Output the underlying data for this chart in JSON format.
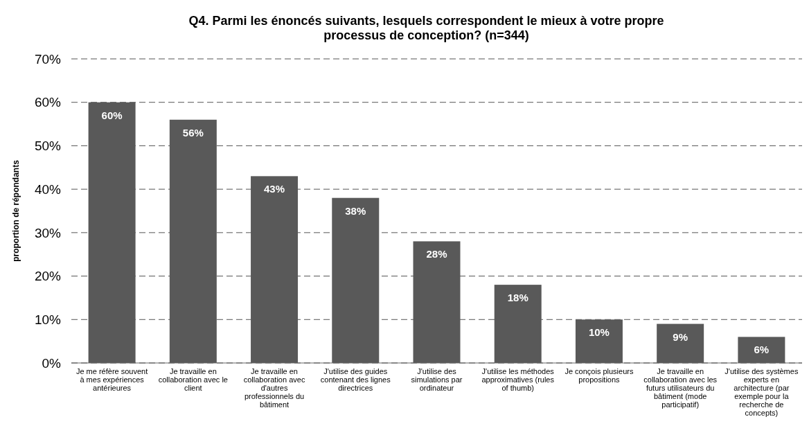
{
  "chart_data": {
    "type": "bar",
    "title": "Q4. Parmi les énoncés suivants, lesquels correspondent le mieux à votre propre processus de conception? (n=344)",
    "ylabel": "proportion de répondants",
    "categories": [
      "Je me réfère souvent à mes expériences antérieures",
      "Je travaille en collaboration avec le client",
      "Je travaille en collaboration avec d'autres professionnels du bâtiment",
      "J'utilise des guides contenant des lignes directrices",
      "J'utilise des simulations par ordinateur",
      "J'utilise les méthodes approximatives (rules of thumb)",
      "Je conçois plusieurs propositions",
      "Je travaille en collaboration avec les futurs utilisateurs du bâtiment (mode participatif)",
      "J'utilise des systèmes experts en architecture (par exemple pour la recherche de concepts)"
    ],
    "values": [
      60,
      56,
      43,
      38,
      28,
      18,
      10,
      9,
      6
    ],
    "value_labels": [
      "60%",
      "56%",
      "43%",
      "38%",
      "28%",
      "18%",
      "10%",
      "9%",
      "6%"
    ],
    "color": "#595959",
    "ylim": [
      0,
      70
    ],
    "yticks": [
      {
        "value": 0,
        "label": "0%"
      },
      {
        "value": 10,
        "label": "10%"
      },
      {
        "value": 20,
        "label": "20%"
      },
      {
        "value": 30,
        "label": "30%"
      },
      {
        "value": 40,
        "label": "40%"
      },
      {
        "value": 50,
        "label": "50%"
      },
      {
        "value": 60,
        "label": "60%"
      },
      {
        "value": 70,
        "label": "70%"
      }
    ],
    "grid": "y"
  }
}
